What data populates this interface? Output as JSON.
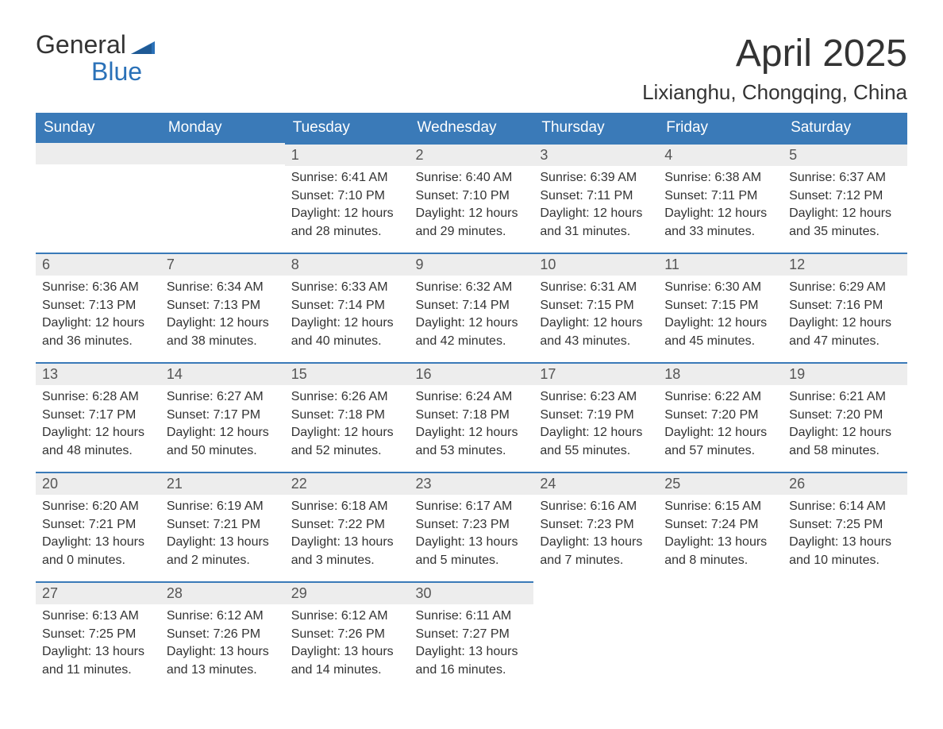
{
  "logo": {
    "line1": "General",
    "line2": "Blue"
  },
  "title": "April 2025",
  "location": "Lixianghu, Chongqing, China",
  "columns": [
    "Sunday",
    "Monday",
    "Tuesday",
    "Wednesday",
    "Thursday",
    "Friday",
    "Saturday"
  ],
  "colors": {
    "header_bg": "#3a7ab8",
    "header_text": "#ffffff",
    "daynum_bg": "#ededed",
    "daynum_border": "#3a7ab8",
    "body_text": "#333333",
    "page_bg": "#ffffff",
    "logo_accent": "#2a71b8"
  },
  "typography": {
    "title_fontsize": 48,
    "location_fontsize": 26,
    "header_fontsize": 19,
    "daynum_fontsize": 18,
    "body_fontsize": 16,
    "logo_fontsize": 32
  },
  "layout": {
    "cols": 7,
    "rows": 5
  },
  "weeks": [
    [
      null,
      null,
      {
        "day": "1",
        "sunrise": "Sunrise: 6:41 AM",
        "sunset": "Sunset: 7:10 PM",
        "daylight1": "Daylight: 12 hours",
        "daylight2": "and 28 minutes."
      },
      {
        "day": "2",
        "sunrise": "Sunrise: 6:40 AM",
        "sunset": "Sunset: 7:10 PM",
        "daylight1": "Daylight: 12 hours",
        "daylight2": "and 29 minutes."
      },
      {
        "day": "3",
        "sunrise": "Sunrise: 6:39 AM",
        "sunset": "Sunset: 7:11 PM",
        "daylight1": "Daylight: 12 hours",
        "daylight2": "and 31 minutes."
      },
      {
        "day": "4",
        "sunrise": "Sunrise: 6:38 AM",
        "sunset": "Sunset: 7:11 PM",
        "daylight1": "Daylight: 12 hours",
        "daylight2": "and 33 minutes."
      },
      {
        "day": "5",
        "sunrise": "Sunrise: 6:37 AM",
        "sunset": "Sunset: 7:12 PM",
        "daylight1": "Daylight: 12 hours",
        "daylight2": "and 35 minutes."
      }
    ],
    [
      {
        "day": "6",
        "sunrise": "Sunrise: 6:36 AM",
        "sunset": "Sunset: 7:13 PM",
        "daylight1": "Daylight: 12 hours",
        "daylight2": "and 36 minutes."
      },
      {
        "day": "7",
        "sunrise": "Sunrise: 6:34 AM",
        "sunset": "Sunset: 7:13 PM",
        "daylight1": "Daylight: 12 hours",
        "daylight2": "and 38 minutes."
      },
      {
        "day": "8",
        "sunrise": "Sunrise: 6:33 AM",
        "sunset": "Sunset: 7:14 PM",
        "daylight1": "Daylight: 12 hours",
        "daylight2": "and 40 minutes."
      },
      {
        "day": "9",
        "sunrise": "Sunrise: 6:32 AM",
        "sunset": "Sunset: 7:14 PM",
        "daylight1": "Daylight: 12 hours",
        "daylight2": "and 42 minutes."
      },
      {
        "day": "10",
        "sunrise": "Sunrise: 6:31 AM",
        "sunset": "Sunset: 7:15 PM",
        "daylight1": "Daylight: 12 hours",
        "daylight2": "and 43 minutes."
      },
      {
        "day": "11",
        "sunrise": "Sunrise: 6:30 AM",
        "sunset": "Sunset: 7:15 PM",
        "daylight1": "Daylight: 12 hours",
        "daylight2": "and 45 minutes."
      },
      {
        "day": "12",
        "sunrise": "Sunrise: 6:29 AM",
        "sunset": "Sunset: 7:16 PM",
        "daylight1": "Daylight: 12 hours",
        "daylight2": "and 47 minutes."
      }
    ],
    [
      {
        "day": "13",
        "sunrise": "Sunrise: 6:28 AM",
        "sunset": "Sunset: 7:17 PM",
        "daylight1": "Daylight: 12 hours",
        "daylight2": "and 48 minutes."
      },
      {
        "day": "14",
        "sunrise": "Sunrise: 6:27 AM",
        "sunset": "Sunset: 7:17 PM",
        "daylight1": "Daylight: 12 hours",
        "daylight2": "and 50 minutes."
      },
      {
        "day": "15",
        "sunrise": "Sunrise: 6:26 AM",
        "sunset": "Sunset: 7:18 PM",
        "daylight1": "Daylight: 12 hours",
        "daylight2": "and 52 minutes."
      },
      {
        "day": "16",
        "sunrise": "Sunrise: 6:24 AM",
        "sunset": "Sunset: 7:18 PM",
        "daylight1": "Daylight: 12 hours",
        "daylight2": "and 53 minutes."
      },
      {
        "day": "17",
        "sunrise": "Sunrise: 6:23 AM",
        "sunset": "Sunset: 7:19 PM",
        "daylight1": "Daylight: 12 hours",
        "daylight2": "and 55 minutes."
      },
      {
        "day": "18",
        "sunrise": "Sunrise: 6:22 AM",
        "sunset": "Sunset: 7:20 PM",
        "daylight1": "Daylight: 12 hours",
        "daylight2": "and 57 minutes."
      },
      {
        "day": "19",
        "sunrise": "Sunrise: 6:21 AM",
        "sunset": "Sunset: 7:20 PM",
        "daylight1": "Daylight: 12 hours",
        "daylight2": "and 58 minutes."
      }
    ],
    [
      {
        "day": "20",
        "sunrise": "Sunrise: 6:20 AM",
        "sunset": "Sunset: 7:21 PM",
        "daylight1": "Daylight: 13 hours",
        "daylight2": "and 0 minutes."
      },
      {
        "day": "21",
        "sunrise": "Sunrise: 6:19 AM",
        "sunset": "Sunset: 7:21 PM",
        "daylight1": "Daylight: 13 hours",
        "daylight2": "and 2 minutes."
      },
      {
        "day": "22",
        "sunrise": "Sunrise: 6:18 AM",
        "sunset": "Sunset: 7:22 PM",
        "daylight1": "Daylight: 13 hours",
        "daylight2": "and 3 minutes."
      },
      {
        "day": "23",
        "sunrise": "Sunrise: 6:17 AM",
        "sunset": "Sunset: 7:23 PM",
        "daylight1": "Daylight: 13 hours",
        "daylight2": "and 5 minutes."
      },
      {
        "day": "24",
        "sunrise": "Sunrise: 6:16 AM",
        "sunset": "Sunset: 7:23 PM",
        "daylight1": "Daylight: 13 hours",
        "daylight2": "and 7 minutes."
      },
      {
        "day": "25",
        "sunrise": "Sunrise: 6:15 AM",
        "sunset": "Sunset: 7:24 PM",
        "daylight1": "Daylight: 13 hours",
        "daylight2": "and 8 minutes."
      },
      {
        "day": "26",
        "sunrise": "Sunrise: 6:14 AM",
        "sunset": "Sunset: 7:25 PM",
        "daylight1": "Daylight: 13 hours",
        "daylight2": "and 10 minutes."
      }
    ],
    [
      {
        "day": "27",
        "sunrise": "Sunrise: 6:13 AM",
        "sunset": "Sunset: 7:25 PM",
        "daylight1": "Daylight: 13 hours",
        "daylight2": "and 11 minutes."
      },
      {
        "day": "28",
        "sunrise": "Sunrise: 6:12 AM",
        "sunset": "Sunset: 7:26 PM",
        "daylight1": "Daylight: 13 hours",
        "daylight2": "and 13 minutes."
      },
      {
        "day": "29",
        "sunrise": "Sunrise: 6:12 AM",
        "sunset": "Sunset: 7:26 PM",
        "daylight1": "Daylight: 13 hours",
        "daylight2": "and 14 minutes."
      },
      {
        "day": "30",
        "sunrise": "Sunrise: 6:11 AM",
        "sunset": "Sunset: 7:27 PM",
        "daylight1": "Daylight: 13 hours",
        "daylight2": "and 16 minutes."
      },
      null,
      null,
      null
    ]
  ]
}
